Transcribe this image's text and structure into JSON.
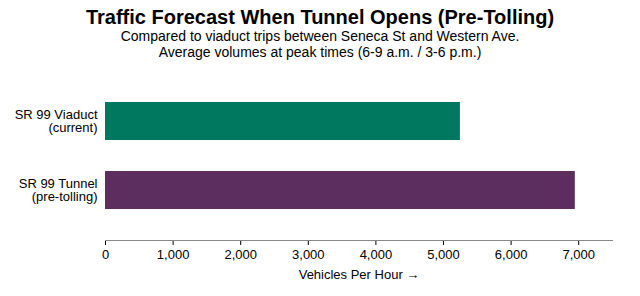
{
  "chart_data": {
    "type": "bar",
    "orientation": "horizontal",
    "title": "Traffic Forecast When Tunnel Opens (Pre-Tolling)",
    "subtitle": [
      "Compared to viaduct trips between Seneca St and Western Ave.",
      "Average volumes at peak times (6-9 a.m. / 3-6 p.m.)"
    ],
    "categories": [
      "SR 99 Viaduct (current)",
      "SR 99 Tunnel (pre-tolling)"
    ],
    "values": [
      5250,
      6950
    ],
    "colors": [
      "#00785F",
      "#5C2D5F"
    ],
    "xlabel": "Vehicles Per Hour",
    "xlim": [
      0,
      7500
    ],
    "xticks": [
      0,
      {
        "value": 1000,
        "label": "1,000"
      },
      {
        "value": 2000,
        "label": "2,000"
      },
      {
        "value": 3000,
        "label": "3,000"
      },
      {
        "value": 4000,
        "label": "4,000"
      },
      {
        "value": 5000,
        "label": "5,000"
      },
      {
        "value": 6000,
        "label": "6,000"
      },
      {
        "value": 7000,
        "label": "7,000"
      }
    ],
    "grid": false
  }
}
